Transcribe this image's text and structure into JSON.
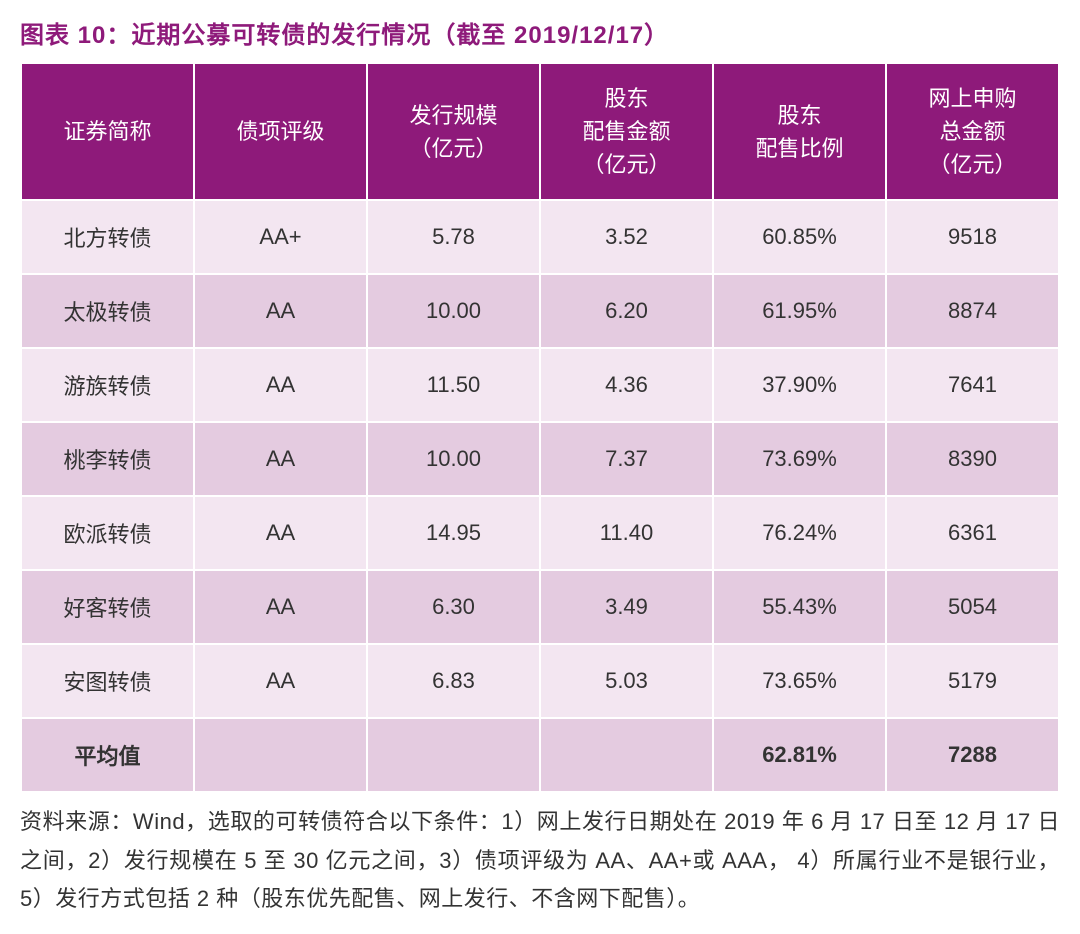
{
  "title": "图表 10：近期公募可转债的发行情况（截至 2019/12/17）",
  "title_color": "#8e1a7a",
  "colors": {
    "header_bg": "#8e1a7a",
    "header_text": "#ffffff",
    "row_odd": "#f3e6f1",
    "row_even": "#e4cbe0",
    "text": "#333333"
  },
  "columns": [
    {
      "label": "证券简称"
    },
    {
      "label": "债项评级"
    },
    {
      "label": "发行规模\n（亿元）"
    },
    {
      "label": "股东\n配售金额\n（亿元）"
    },
    {
      "label": "股东\n配售比例"
    },
    {
      "label": "网上申购\n总金额\n（亿元）"
    }
  ],
  "rows": [
    {
      "name": "北方转债",
      "rating": "AA+",
      "size": "5.78",
      "alloc_amt": "3.52",
      "alloc_pct": "60.85%",
      "online_amt": "9518"
    },
    {
      "name": "太极转债",
      "rating": "AA",
      "size": "10.00",
      "alloc_amt": "6.20",
      "alloc_pct": "61.95%",
      "online_amt": "8874"
    },
    {
      "name": "游族转债",
      "rating": "AA",
      "size": "11.50",
      "alloc_amt": "4.36",
      "alloc_pct": "37.90%",
      "online_amt": "7641"
    },
    {
      "name": "桃李转债",
      "rating": "AA",
      "size": "10.00",
      "alloc_amt": "7.37",
      "alloc_pct": "73.69%",
      "online_amt": "8390"
    },
    {
      "name": "欧派转债",
      "rating": "AA",
      "size": "14.95",
      "alloc_amt": "11.40",
      "alloc_pct": "76.24%",
      "online_amt": "6361"
    },
    {
      "name": "好客转债",
      "rating": "AA",
      "size": "6.30",
      "alloc_amt": "3.49",
      "alloc_pct": "55.43%",
      "online_amt": "5054"
    },
    {
      "name": "安图转债",
      "rating": "AA",
      "size": "6.83",
      "alloc_amt": "5.03",
      "alloc_pct": "73.65%",
      "online_amt": "5179"
    }
  ],
  "average": {
    "label": "平均值",
    "alloc_pct": "62.81%",
    "online_amt": "7288"
  },
  "footnote": "资料来源：Wind，选取的可转债符合以下条件：1）网上发行日期处在 2019 年 6 月 17 日至 12 月 17 日之间，2）发行规模在 5 至 30 亿元之间，3）债项评级为 AA、AA+或 AAA，  4）所属行业不是银行业，5）发行方式包括 2 种（股东优先配售、网上发行、不含网下配售）。"
}
